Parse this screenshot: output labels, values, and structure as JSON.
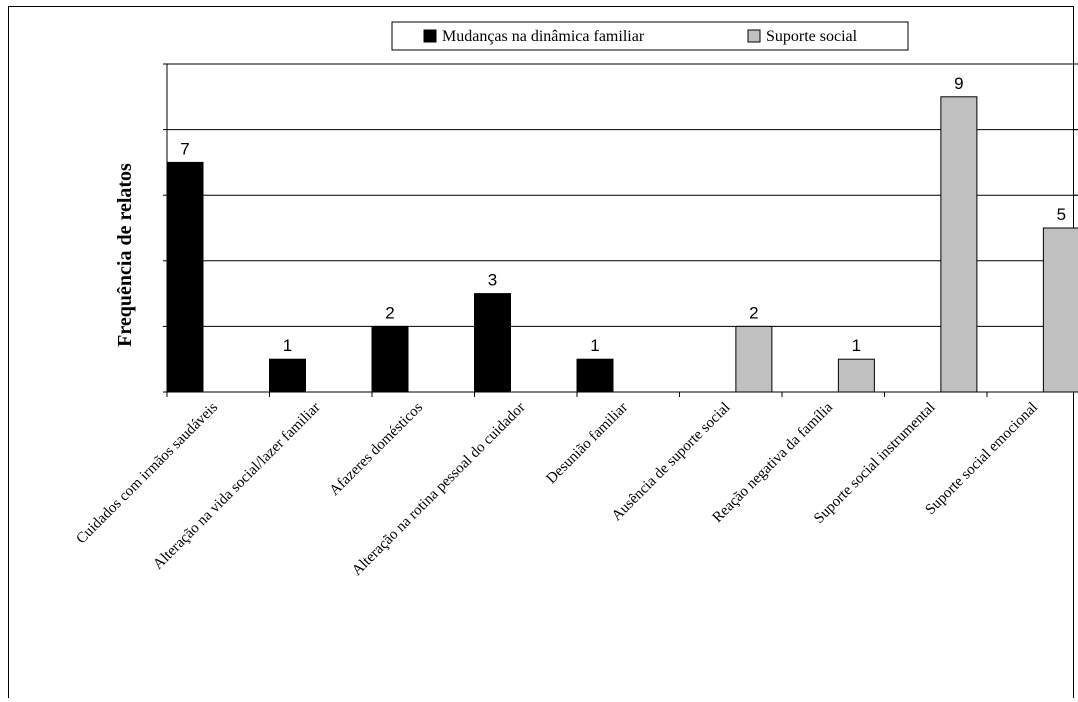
{
  "chart_data": {
    "type": "bar",
    "title": "",
    "xlabel": "",
    "ylabel": "Frequência de relatos",
    "ylim": [
      0,
      10
    ],
    "grid": true,
    "legend_position": "top",
    "categories": [
      "Cuidados com irmãos saudáveis",
      "Alteração na vida social/lazer familiar",
      "Afazeres domésticos",
      "Alteração na rotina pessoal do cuidador",
      "Desunião familiar",
      "Ausência de suporte social",
      "Reação negativa da família",
      "Suporte social instrumental",
      "Suporte social emocional"
    ],
    "series": [
      {
        "name": "Mudanças na dinâmica familiar",
        "color": "#000000",
        "values": [
          7,
          1,
          2,
          3,
          1,
          null,
          null,
          null,
          null
        ]
      },
      {
        "name": "Suporte social",
        "color": "#c0c0c0",
        "values": [
          null,
          null,
          null,
          null,
          null,
          2,
          1,
          9,
          5
        ]
      }
    ]
  }
}
